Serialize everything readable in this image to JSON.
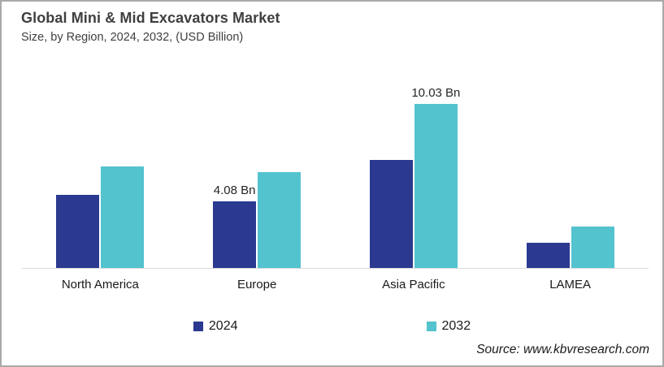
{
  "header": {
    "title": "Global Mini & Mid Excavators Market",
    "subtitle": "Size, by Region, 2024, 2032, (USD Billion)"
  },
  "chart_data": {
    "type": "bar",
    "title": "Global Mini & Mid Excavators Market Size, by Region, 2024, 2032, (USD Billion)",
    "unit": "USD Billion",
    "categories": [
      "North America",
      "Europe",
      "Asia Pacific",
      "LAMEA"
    ],
    "series": [
      {
        "name": "2024",
        "color": "#2b3990",
        "values": [
          4.45,
          4.08,
          6.62,
          1.53
        ],
        "data_labels": [
          "",
          "4.08 Bn",
          "",
          ""
        ]
      },
      {
        "name": "2032",
        "color": "#53c3ce",
        "values": [
          6.18,
          5.88,
          10.03,
          2.52
        ],
        "data_labels": [
          "",
          "",
          "10.03 Bn",
          ""
        ]
      }
    ],
    "xlabel": "",
    "ylabel": "",
    "ylim": [
      0,
      11.86
    ],
    "grid": false,
    "value_axis_hidden": true,
    "legend_position": "bottom"
  },
  "source": "Source: www.kbvresearch.com",
  "colors": {
    "bar_2024": "#2b3990",
    "bar_2032": "#53c3ce",
    "axis_line": "#d9d9d9",
    "frame_border": "#a9a9a9",
    "title_text": "#3f3f3f"
  }
}
